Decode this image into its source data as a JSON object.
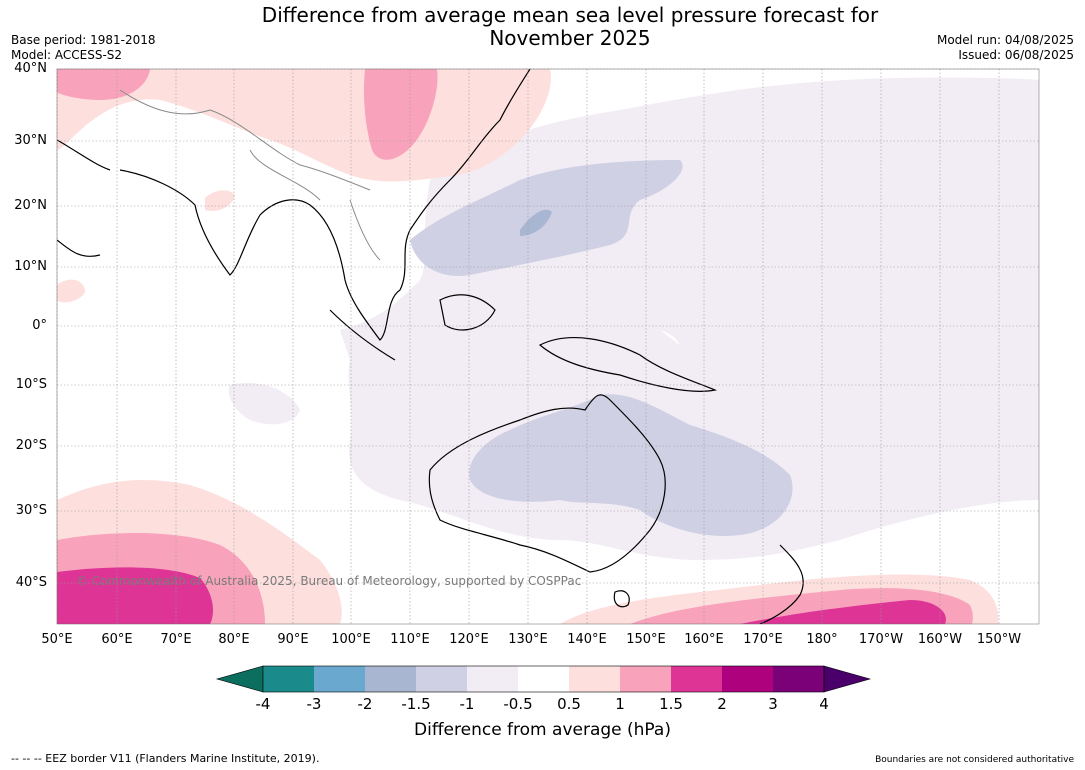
{
  "title_line1": "Difference from average mean sea level pressure forecast for",
  "title_line2": "November 2025",
  "meta_left": [
    "Base period: 1981-2018",
    "Model: ACCESS-S2"
  ],
  "meta_right": [
    "Model run: 04/08/2025",
    "Issued: 06/08/2025"
  ],
  "lat_labels": [
    "40°N",
    "30°N",
    "20°N",
    "10°N",
    "0°",
    "10°S",
    "20°S",
    "30°S",
    "40°S"
  ],
  "lon_labels": [
    "50°E",
    "60°E",
    "70°E",
    "80°E",
    "90°E",
    "100°E",
    "110°E",
    "120°E",
    "130°E",
    "140°E",
    "150°E",
    "160°E",
    "170°E",
    "180°",
    "170°W",
    "160°W",
    "150°W"
  ],
  "copyright": "© Commonwealth of Australia 2025, Bureau of Meteorology, supported by COSPPac",
  "colorbar": {
    "title": "Difference from average (hPa)",
    "labels": [
      "-4",
      "-3",
      "-2",
      "-1.5",
      "-1",
      "-0.5",
      "0.5",
      "1",
      "1.5",
      "2",
      "3",
      "4"
    ],
    "colors": [
      "#1a8a8a",
      "#6aa8cf",
      "#a9b6d2",
      "#cfd0e3",
      "#f2ecf4",
      "#ffffff",
      "#fde0de",
      "#f8a3bb",
      "#dd3496",
      "#ae017e",
      "#7a0177"
    ],
    "under_color": "#0b6e5e",
    "over_color": "#49006a"
  },
  "footer_left": "--  --  -- EEZ border V11 (Flanders Marine Institute, 2019).",
  "footer_right": "Boundaries are not considered authoritative"
}
